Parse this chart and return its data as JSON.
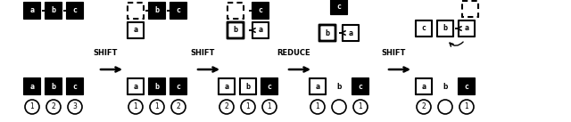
{
  "bg_color": "#ffffff",
  "transitions": [
    "SHIFT",
    "SHIFT",
    "REDUCE",
    "SHIFT"
  ],
  "section_centers": [
    0.095,
    0.275,
    0.435,
    0.595,
    0.78
  ],
  "transition_centers": [
    0.185,
    0.355,
    0.515,
    0.69
  ]
}
